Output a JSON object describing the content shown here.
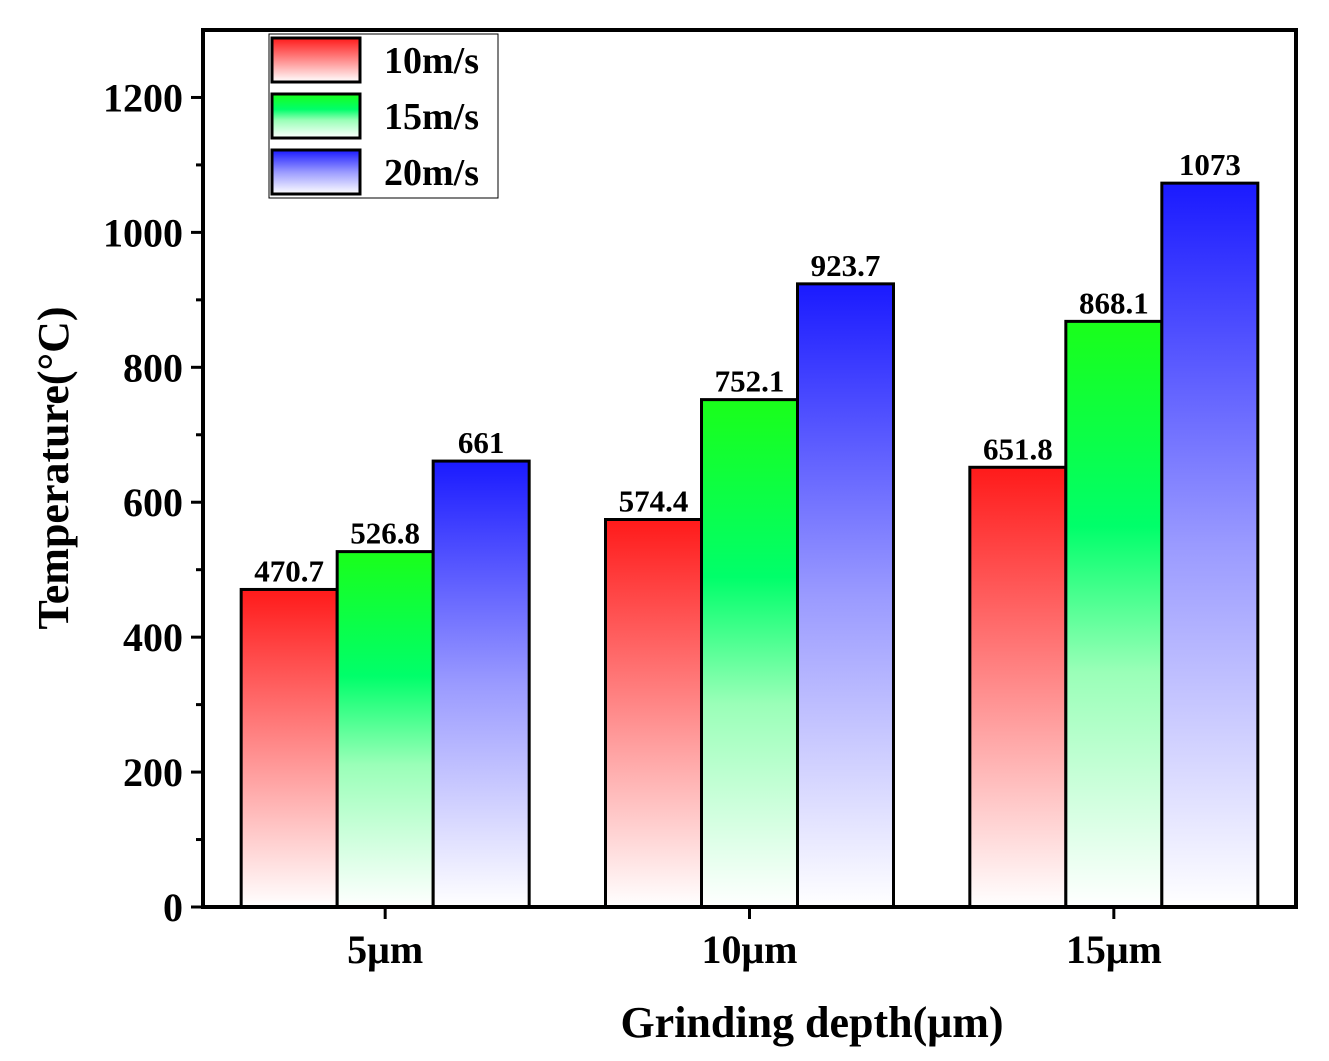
{
  "chart_data": {
    "type": "bar",
    "title": "",
    "xlabel": "Grinding depth(μm)",
    "ylabel": "Temperature(°C)",
    "categories": [
      "5μm",
      "10μm",
      "15μm"
    ],
    "ylim": [
      0,
      1300
    ],
    "yticks": [
      0,
      200,
      400,
      600,
      800,
      1000,
      1200
    ],
    "ytick_labels": [
      "0",
      "200",
      "400",
      "600",
      "800",
      "1000",
      "1200"
    ],
    "legend_position": "top-left",
    "grid": false,
    "series": [
      {
        "name": "10m/s",
        "color": "#ff1a1a",
        "values": [
          470.7,
          574.4,
          651.8
        ],
        "labels": [
          "470.7",
          "574.4",
          "651.8"
        ]
      },
      {
        "name": "15m/s",
        "color": "#1aff1a",
        "values": [
          526.8,
          752.1,
          868.1
        ],
        "labels": [
          "526.8",
          "752.1",
          "868.1"
        ]
      },
      {
        "name": "20m/s",
        "color": "#1a1aff",
        "values": [
          661,
          923.7,
          1073
        ],
        "labels": [
          "661",
          "923.7",
          "1073"
        ]
      }
    ]
  }
}
